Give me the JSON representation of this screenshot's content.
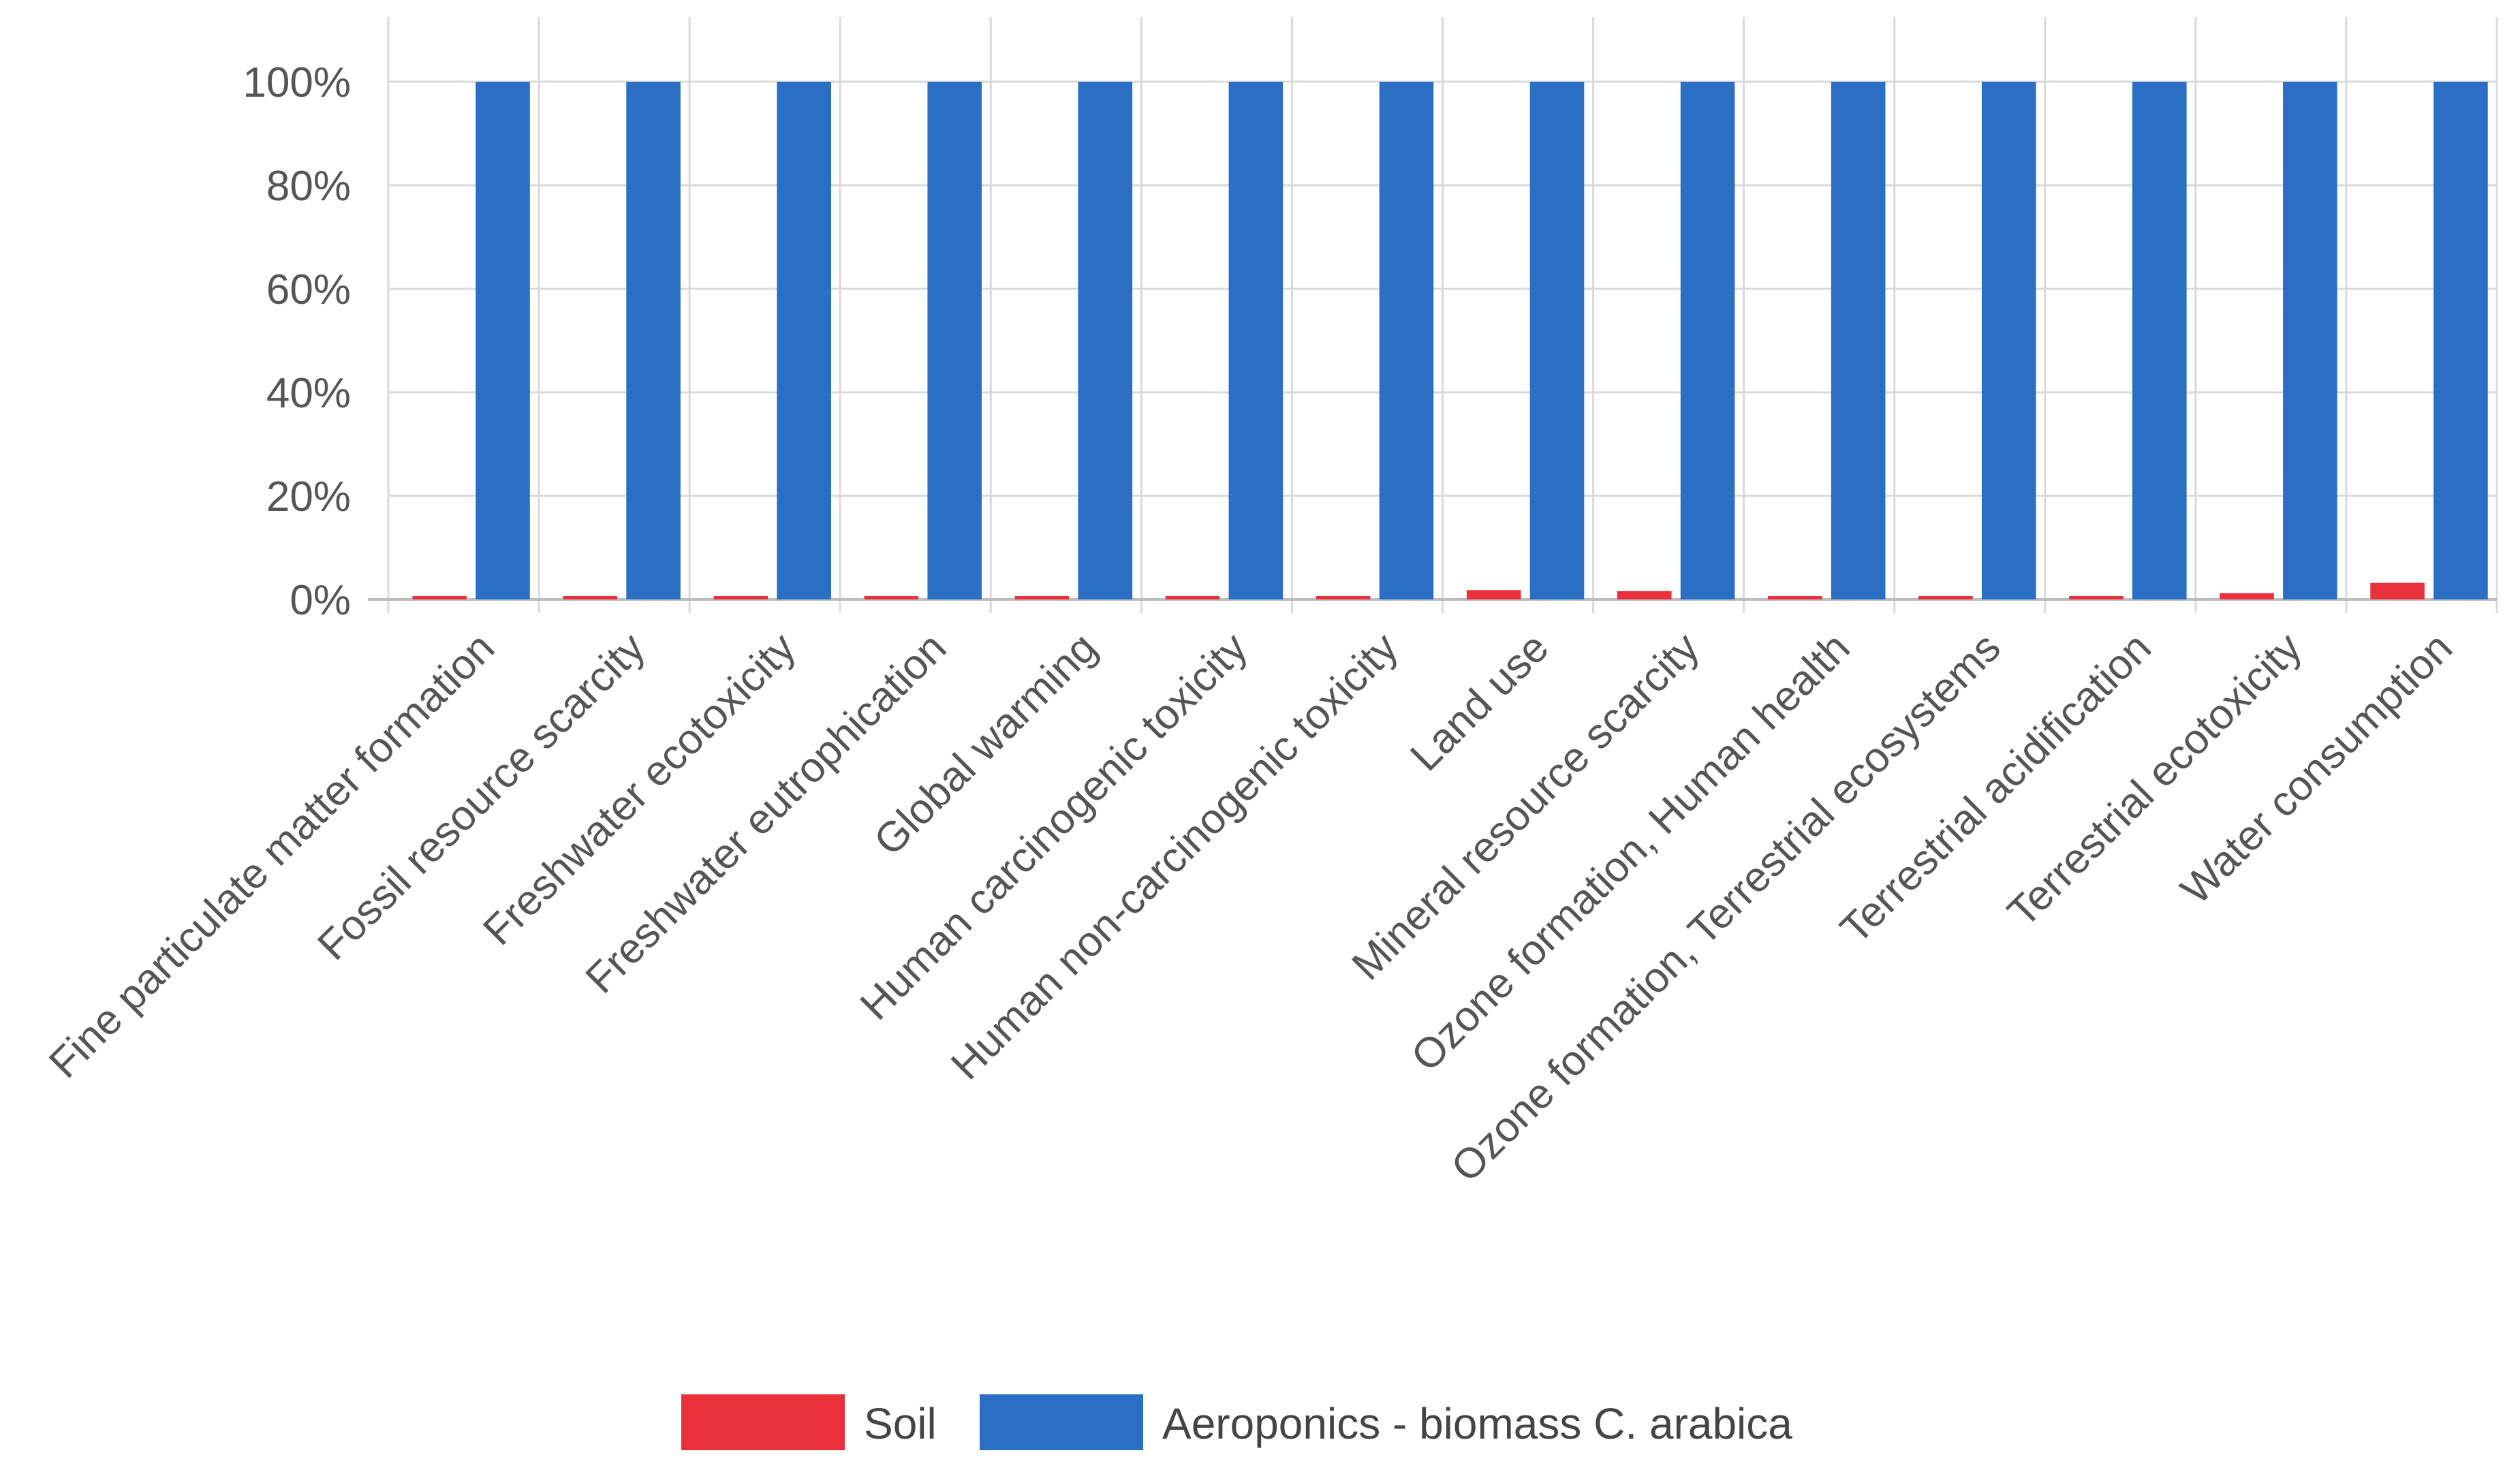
{
  "chart_data": {
    "type": "bar",
    "title": "",
    "xlabel": "",
    "ylabel": "",
    "ylim": [
      0,
      112
    ],
    "yticks": [
      0,
      20,
      40,
      60,
      80,
      100
    ],
    "ytick_labels": [
      "0%",
      "20%",
      "40%",
      "60%",
      "80%",
      "100%"
    ],
    "grid": true,
    "legend_position": "bottom",
    "categories": [
      "Fine particulate matter formation",
      "Fossil resource scarcity",
      "Freshwater ecotoxicity",
      "Freshwater eutrophication",
      "Global warming",
      "Human carcinogenic toxicity",
      "Human non-carcinogenic toxicity",
      "Land use",
      "Mineral resource scarcity",
      "Ozone formation, Human health",
      "Ozone formation, Terrestrial ecosystems",
      "Terrestrial acidification",
      "Terrestrial ecotoxicity",
      "Water consumption"
    ],
    "series": [
      {
        "name": "Soil",
        "color": "#e8313a",
        "values": [
          0.3,
          0.2,
          0.2,
          0.1,
          0.2,
          0.4,
          0.4,
          1.8,
          1.6,
          0.4,
          0.4,
          0.2,
          1.2,
          3.2
        ]
      },
      {
        "name": "Aeroponics - biomass C. arabica",
        "color": "#2a6fc4",
        "values": [
          100,
          100,
          100,
          100,
          100,
          100,
          100,
          100,
          100,
          100,
          100,
          100,
          100,
          100
        ]
      }
    ]
  }
}
